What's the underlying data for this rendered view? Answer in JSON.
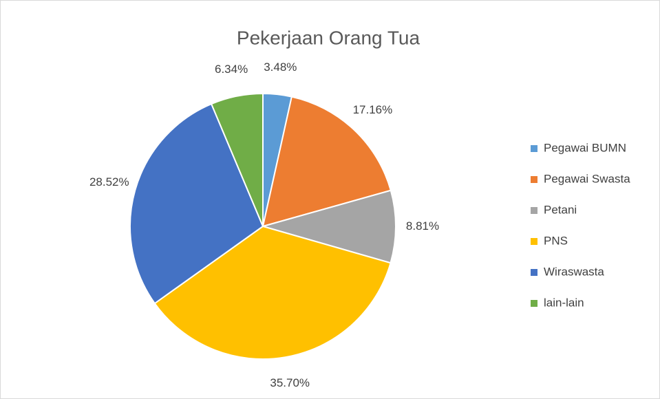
{
  "chart_data": {
    "type": "pie",
    "title": "Pekerjaan Orang Tua",
    "categories": [
      "Pegawai BUMN",
      "Pegawai Swasta",
      "Petani",
      "PNS",
      "Wiraswasta",
      "lain-lain"
    ],
    "values": [
      3.48,
      17.16,
      8.81,
      35.7,
      28.52,
      6.34
    ],
    "value_labels": [
      "3.48%",
      "17.16%",
      "8.81%",
      "35.70%",
      "28.52%",
      "6.34%"
    ],
    "colors": [
      "#5b9bd5",
      "#ed7d31",
      "#a5a5a5",
      "#ffc000",
      "#4472c4",
      "#70ad47"
    ],
    "legend": "right"
  }
}
